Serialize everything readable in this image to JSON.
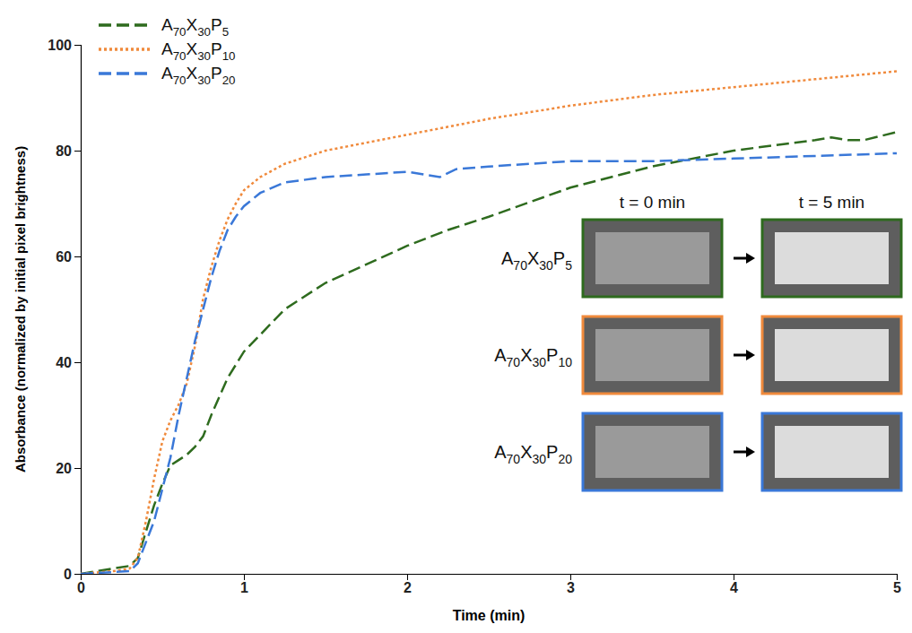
{
  "chart_data": {
    "type": "line",
    "x_label": "Time (min)",
    "y_label": "Absorbance (normalized by initial pixel brightness)",
    "xlim": [
      0,
      5
    ],
    "ylim": [
      0,
      100
    ],
    "xticks": [
      0,
      1,
      2,
      3,
      4,
      5
    ],
    "yticks": [
      0,
      20,
      40,
      60,
      80,
      100
    ],
    "legend": "upper left",
    "annotations": [
      "t = 0 min",
      "t = 5 min"
    ],
    "series": [
      {
        "name": "A70X30P5",
        "color": "#2e6b1e",
        "line_style": "dashed",
        "x": [
          0,
          0.2,
          0.3,
          0.35,
          0.4,
          0.45,
          0.5,
          0.55,
          0.6,
          0.65,
          0.7,
          0.75,
          0.8,
          0.9,
          1.0,
          1.25,
          1.5,
          1.75,
          2.0,
          2.25,
          2.5,
          3.0,
          3.5,
          4.0,
          4.5,
          4.6,
          4.7,
          4.8,
          5.0
        ],
        "values": [
          0,
          1,
          1.5,
          3,
          8,
          13,
          17,
          20.5,
          21.5,
          22.5,
          24,
          26,
          30,
          37,
          42,
          50,
          55,
          58.5,
          62,
          65,
          67.5,
          73,
          77,
          80,
          82,
          82.5,
          82,
          82,
          83.5
        ]
      },
      {
        "name": "A70X30P10",
        "color": "#f08a3c",
        "line_style": "dotted",
        "x": [
          0,
          0.2,
          0.3,
          0.35,
          0.4,
          0.45,
          0.5,
          0.55,
          0.6,
          0.65,
          0.7,
          0.75,
          0.8,
          0.85,
          0.9,
          0.95,
          1.0,
          1.1,
          1.25,
          1.5,
          1.75,
          2.0,
          2.5,
          3.0,
          3.5,
          4.0,
          4.5,
          5.0
        ],
        "values": [
          0,
          0.5,
          1,
          3,
          10,
          18,
          25,
          29,
          32,
          36,
          43,
          52,
          58,
          63,
          67,
          70,
          72.5,
          75,
          77.5,
          80,
          81.5,
          83,
          86,
          88.5,
          90.5,
          92,
          93.5,
          95
        ]
      },
      {
        "name": "A70X30P20",
        "color": "#3a78d8",
        "line_style": "dashed",
        "x": [
          0,
          0.3,
          0.35,
          0.4,
          0.45,
          0.5,
          0.55,
          0.6,
          0.65,
          0.7,
          0.75,
          0.8,
          0.85,
          0.9,
          0.95,
          1.0,
          1.1,
          1.25,
          1.5,
          1.75,
          2.0,
          2.1,
          2.2,
          2.3,
          2.5,
          3.0,
          3.5,
          4.0,
          4.5,
          5.0
        ],
        "values": [
          0,
          0.5,
          2,
          6,
          10,
          16,
          22,
          30,
          37,
          44,
          50,
          56,
          61,
          65,
          67.5,
          69.5,
          72,
          74,
          75,
          75.5,
          76,
          75.5,
          75,
          76.5,
          77,
          78,
          78,
          78.5,
          79,
          79.5
        ]
      }
    ]
  }
}
